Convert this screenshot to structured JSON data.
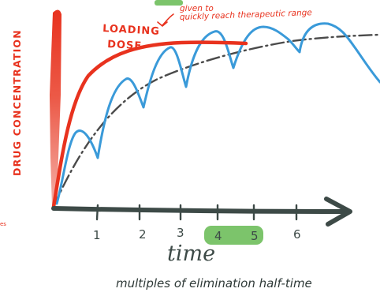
{
  "title_partial": "",
  "labels": {
    "y_axis": "DRUG CONCENTRATION",
    "loading_dose_line1": "LOADING",
    "loading_dose_line2": "DOSE",
    "annotation_line1": "given to",
    "annotation_line2": "quickly reach therapeutic range",
    "x_axis_title": "time",
    "x_axis_subtitle": "multiples of elimination half-time",
    "left_edge_fragment": "es"
  },
  "x_ticks": [
    "1",
    "2",
    "3",
    "4",
    "5",
    "6"
  ],
  "highlighted_ticks": [
    "4",
    "5"
  ],
  "colors": {
    "axis": "#3d4a47",
    "loading_dose": "#e8321e",
    "oscillating": "#3a9ad9",
    "steady_state": "#4a4a4a",
    "initial_bar": "#ec7a6c",
    "highlight": "#7cc46b",
    "annotation": "#e8321e"
  }
}
